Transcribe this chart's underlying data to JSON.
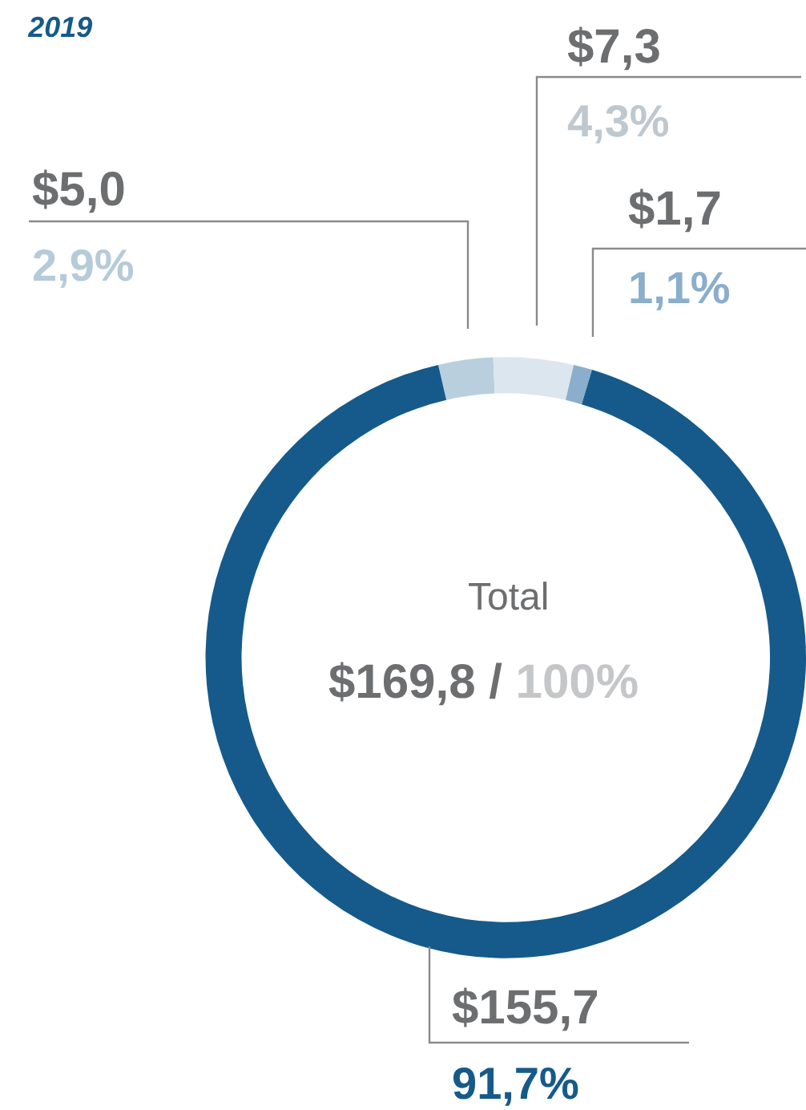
{
  "chart_data": {
    "type": "donut",
    "title": "2019",
    "categories": [
      null,
      null,
      null,
      null
    ],
    "values": [
      5.0,
      7.3,
      1.7,
      155.7
    ],
    "colors": [
      "#b9cfdd",
      "#dce6ee",
      "#8aaecb",
      "#155a8a"
    ],
    "value_labels": [
      "$5,0\n2,9%",
      "$7,3\n4,3%",
      "$1,7\n1,1%",
      "$155,7\n91,7%"
    ],
    "annotations": [
      "Total",
      "$169,8 / 100%"
    ],
    "legend": false
  }
}
